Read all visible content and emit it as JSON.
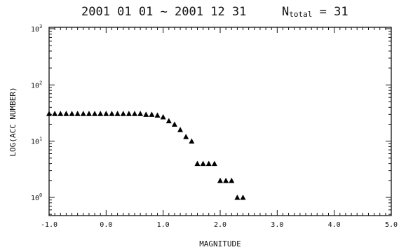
{
  "title": {
    "dates": "2001 01 01 ~ 2001 12 31",
    "n_prefix": "N",
    "n_sub": "total",
    "n_suffix": " = 31"
  },
  "chart_data": {
    "type": "scatter",
    "marker": "triangle",
    "color": "#000000",
    "xlabel": "MAGNITUDE",
    "ylabel": "LOG(ACC NUMBER)",
    "xlim": [
      -1.0,
      5.0
    ],
    "ylim": [
      0.5,
      1000
    ],
    "yscale": "log",
    "grid": false,
    "x_ticks": [
      {
        "value": -1.0,
        "label": "-1.0"
      },
      {
        "value": 0.0,
        "label": "0.0"
      },
      {
        "value": 1.0,
        "label": "1.0"
      },
      {
        "value": 2.0,
        "label": "2.0"
      },
      {
        "value": 3.0,
        "label": "3.0"
      },
      {
        "value": 4.0,
        "label": "4.0"
      },
      {
        "value": 5.0,
        "label": "5.0"
      }
    ],
    "y_ticks": [
      {
        "value": 1,
        "base": "10",
        "exp": "0"
      },
      {
        "value": 10,
        "base": "10",
        "exp": "1"
      },
      {
        "value": 100,
        "base": "10",
        "exp": "2"
      },
      {
        "value": 1000,
        "base": "10",
        "exp": "3"
      }
    ],
    "x": [
      -1.0,
      -0.9,
      -0.8,
      -0.7,
      -0.6,
      -0.5,
      -0.4,
      -0.3,
      -0.2,
      -0.1,
      0.0,
      0.1,
      0.2,
      0.3,
      0.4,
      0.5,
      0.6,
      0.7,
      0.8,
      0.9,
      1.0,
      1.1,
      1.2,
      1.3,
      1.4,
      1.5,
      1.6,
      1.7,
      1.8,
      1.9,
      2.0,
      2.1,
      2.2,
      2.3,
      2.4
    ],
    "y": [
      31,
      31,
      31,
      31,
      31,
      31,
      31,
      31,
      31,
      31,
      31,
      31,
      31,
      31,
      31,
      31,
      31,
      30,
      30,
      29,
      27,
      23,
      20,
      16,
      12,
      10,
      4,
      4,
      4,
      4,
      2,
      2,
      2,
      1,
      1
    ]
  }
}
